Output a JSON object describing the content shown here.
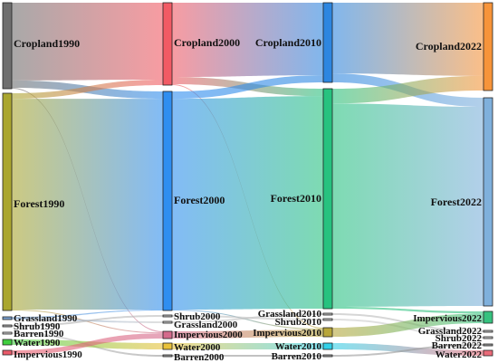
{
  "diagram": {
    "type": "sankey",
    "columns": [
      "1990",
      "2000",
      "2010",
      "2022"
    ],
    "nodes": {
      "Cropland1990": {
        "label": "Cropland1990",
        "color": "#6f6f6f"
      },
      "Forest1990": {
        "label": "Forest1990",
        "color": "#aaa62f"
      },
      "Grassland1990": {
        "label": "Grassland1990",
        "color": "#7aa0cf"
      },
      "Shrub1990": {
        "label": "Shrub1990",
        "color": "#aaaaaa"
      },
      "Barren1990": {
        "label": "Barren1990",
        "color": "#cfcfcf"
      },
      "Water1990": {
        "label": "Water1990",
        "color": "#3fcf3f"
      },
      "Impervious1990": {
        "label": "Impervious1990",
        "color": "#ea5a6a"
      },
      "Cropland2000": {
        "label": "Cropland2000",
        "color": "#f25a64"
      },
      "Forest2000": {
        "label": "Forest2000",
        "color": "#2f8ef0"
      },
      "Shrub2000": {
        "label": "Shrub2000",
        "color": "#bbbbbb"
      },
      "Grassland2000": {
        "label": "Grassland2000",
        "color": "#cccccc"
      },
      "Impervious2000": {
        "label": "Impervious2000",
        "color": "#d46a8c"
      },
      "Water2000": {
        "label": "Water2000",
        "color": "#e8c13a"
      },
      "Barren2000": {
        "label": "Barren2000",
        "color": "#999999"
      },
      "Cropland2010": {
        "label": "Cropland2010",
        "color": "#2d86e0"
      },
      "Forest2010": {
        "label": "Forest2010",
        "color": "#27c27f"
      },
      "Grassland2010": {
        "label": "Grassland2010",
        "color": "#bbbbbb"
      },
      "Shrub2010": {
        "label": "Shrub2010",
        "color": "#cccccc"
      },
      "Impervious2010": {
        "label": "Impervious2010",
        "color": "#b8a63a"
      },
      "Water2010": {
        "label": "Water2010",
        "color": "#31d0e8"
      },
      "Barren2010": {
        "label": "Barren2010",
        "color": "#999999"
      },
      "Cropland2022": {
        "label": "Cropland2022",
        "color": "#f7943a"
      },
      "Forest2022": {
        "label": "Forest2022",
        "color": "#7fb0dc"
      },
      "Impervious2022": {
        "label": "Impervious2022",
        "color": "#36c27f"
      },
      "Grassland2022": {
        "label": "Grassland2022",
        "color": "#bbbbbb"
      },
      "Shrub2022": {
        "label": "Shrub2022",
        "color": "#cccccc"
      },
      "Barren2022": {
        "label": "Barren2022",
        "color": "#999999"
      },
      "Water2022": {
        "label": "Water2022",
        "color": "#ea6a78"
      }
    },
    "links": [
      {
        "source": "Cropland1990",
        "target": "Cropland2000",
        "value": 85
      },
      {
        "source": "Cropland1990",
        "target": "Forest2000",
        "value": 8
      },
      {
        "source": "Cropland1990",
        "target": "Impervious2000",
        "value": 1
      },
      {
        "source": "Forest1990",
        "target": "Cropland2000",
        "value": 6
      },
      {
        "source": "Forest1990",
        "target": "Forest2000",
        "value": 230
      },
      {
        "source": "Forest1990",
        "target": "Impervious2000",
        "value": 1
      },
      {
        "source": "Grassland1990",
        "target": "Forest2000",
        "value": 1
      },
      {
        "source": "Grassland1990",
        "target": "Grassland2000",
        "value": 1
      },
      {
        "source": "Shrub1990",
        "target": "Shrub2000",
        "value": 1
      },
      {
        "source": "Barren1990",
        "target": "Barren2000",
        "value": 1
      },
      {
        "source": "Water1990",
        "target": "Water2000",
        "value": 6
      },
      {
        "source": "Impervious1990",
        "target": "Impervious2000",
        "value": 5
      },
      {
        "source": "Cropland2000",
        "target": "Cropland2010",
        "value": 82
      },
      {
        "source": "Cropland2000",
        "target": "Forest2010",
        "value": 8
      },
      {
        "source": "Cropland2000",
        "target": "Impervious2010",
        "value": 1
      },
      {
        "source": "Forest2000",
        "target": "Cropland2010",
        "value": 8
      },
      {
        "source": "Forest2000",
        "target": "Forest2010",
        "value": 230
      },
      {
        "source": "Forest2000",
        "target": "Impervious2010",
        "value": 1
      },
      {
        "source": "Shrub2000",
        "target": "Shrub2010",
        "value": 1
      },
      {
        "source": "Grassland2000",
        "target": "Grassland2010",
        "value": 1
      },
      {
        "source": "Impervious2000",
        "target": "Impervious2010",
        "value": 7
      },
      {
        "source": "Water2000",
        "target": "Water2010",
        "value": 6
      },
      {
        "source": "Barren2000",
        "target": "Barren2010",
        "value": 1
      },
      {
        "source": "Cropland2010",
        "target": "Cropland2022",
        "value": 80
      },
      {
        "source": "Cropland2010",
        "target": "Forest2022",
        "value": 10
      },
      {
        "source": "Forest2010",
        "target": "Cropland2022",
        "value": 16
      },
      {
        "source": "Forest2010",
        "target": "Forest2022",
        "value": 220
      },
      {
        "source": "Forest2010",
        "target": "Impervious2022",
        "value": 2
      },
      {
        "source": "Grassland2010",
        "target": "Grassland2022",
        "value": 1
      },
      {
        "source": "Shrub2010",
        "target": "Shrub2022",
        "value": 1
      },
      {
        "source": "Impervious2010",
        "target": "Impervious2022",
        "value": 9
      },
      {
        "source": "Water2010",
        "target": "Water2022",
        "value": 6
      },
      {
        "source": "Barren2010",
        "target": "Barren2022",
        "value": 1
      }
    ]
  }
}
